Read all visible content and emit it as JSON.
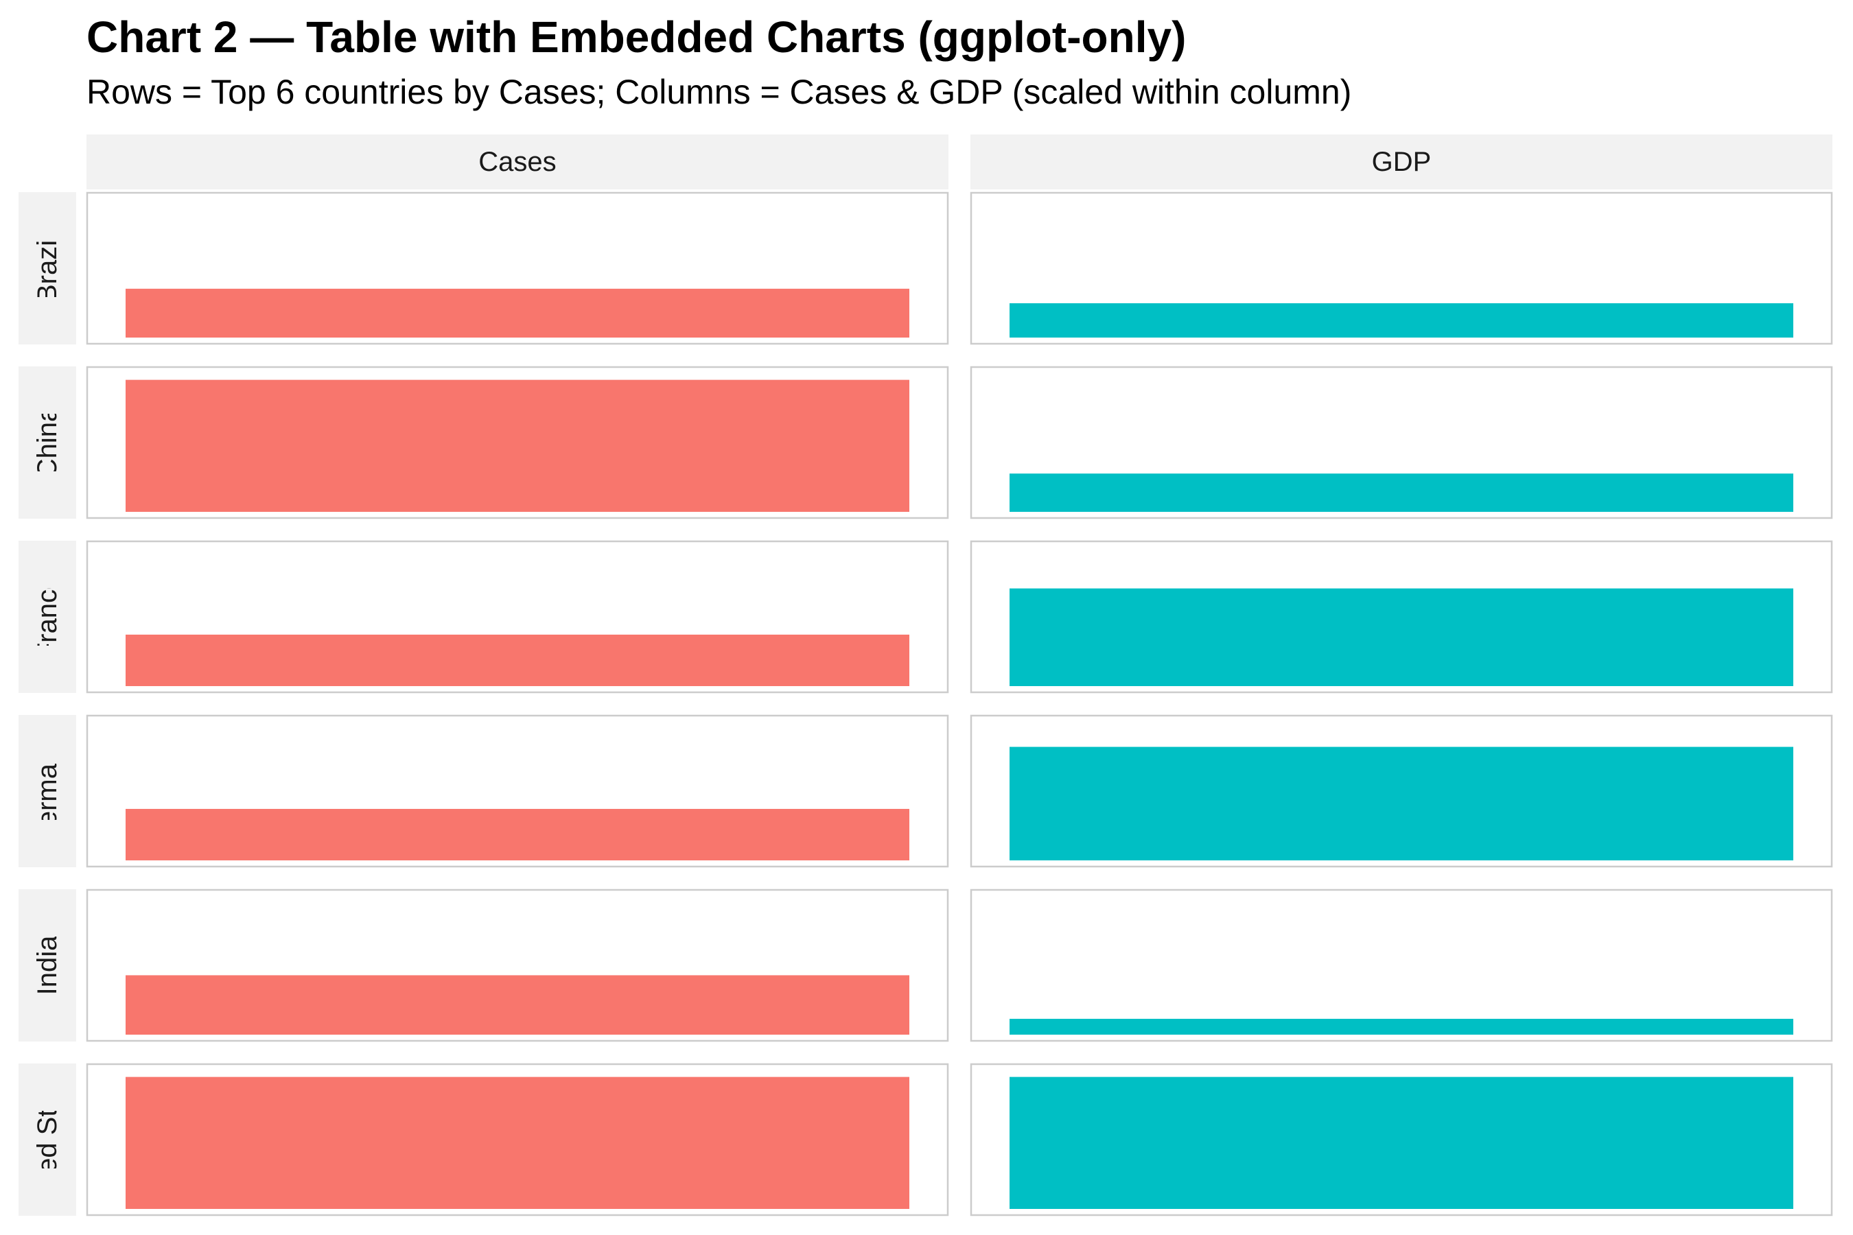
{
  "chart_data": {
    "type": "bar",
    "title": "Chart 2 — Table with Embedded Charts (ggplot-only)",
    "subtitle": "Rows = Top 6 countries by Cases; Columns = Cases & GDP (scaled within column)",
    "columns": [
      "Cases",
      "GDP"
    ],
    "rows": [
      "Brazil",
      "China",
      "France",
      "Germany",
      "India",
      "United States"
    ],
    "series": [
      {
        "values": [
          0.37,
          1.0,
          0.39,
          0.39,
          0.45,
          1.0
        ],
        "color": "#F8766D"
      },
      {
        "values": [
          0.26,
          0.29,
          0.74,
          0.86,
          0.12,
          1.0
        ],
        "color": "#00BFC4"
      }
    ],
    "ylim": [
      0,
      1.05
    ],
    "grid": false,
    "legend": "none"
  }
}
